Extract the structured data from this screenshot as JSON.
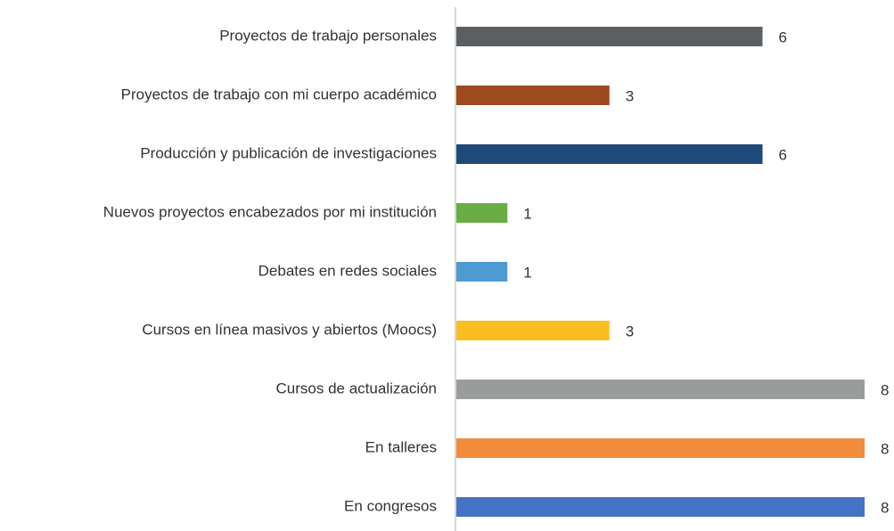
{
  "chart_data": {
    "type": "barh",
    "categories": [
      "Proyectos de trabajo personales",
      "Proyectos de trabajo con mi cuerpo académico",
      "Producción y publicación de investigaciones",
      "Nuevos proyectos encabezados por mi institución",
      "Debates en redes sociales",
      "Cursos en línea masivos y abiertos (Moocs)",
      "Cursos de actualización",
      "En talleres",
      "En congresos"
    ],
    "values": [
      6,
      3,
      6,
      1,
      1,
      3,
      8,
      8,
      8
    ],
    "colors": [
      "#5b5f62",
      "#9c4a1e",
      "#1d4a78",
      "#6aad45",
      "#4e9ad4",
      "#fbbd1f",
      "#9a9c9c",
      "#f28b3c",
      "#4472c4"
    ],
    "xlim": [
      0,
      8
    ]
  }
}
